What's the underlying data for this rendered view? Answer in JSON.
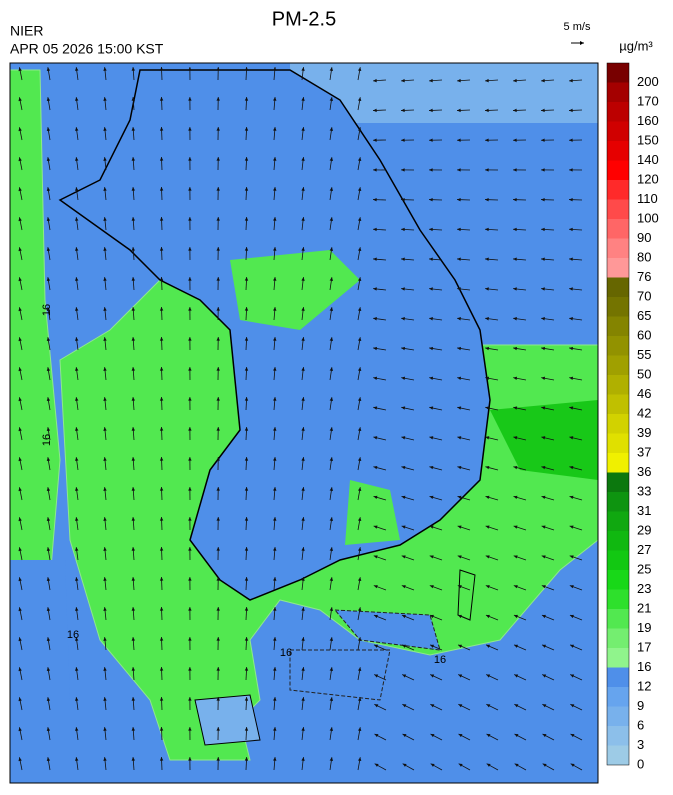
{
  "header": {
    "title": "PM-2.5",
    "agency": "NIER",
    "datetime": "APR 05 2026 15:00 KST"
  },
  "wind_scale": "5 m/s",
  "unit": "µg/m³",
  "contour_labels": [
    16,
    16,
    16,
    16,
    16
  ],
  "legend": {
    "ticks": [
      0,
      3,
      6,
      9,
      12,
      16,
      17,
      19,
      21,
      23,
      25,
      27,
      29,
      31,
      33,
      36,
      37,
      39,
      42,
      46,
      50,
      55,
      60,
      65,
      70,
      76,
      80,
      90,
      100,
      110,
      120,
      140,
      150,
      160,
      170,
      200
    ],
    "colors": [
      "#9dcbe6",
      "#8cbfea",
      "#78b1ec",
      "#66a4ee",
      "#4f8fe9",
      "#90f48c",
      "#74ee70",
      "#52e850",
      "#2ee02c",
      "#18d818",
      "#12c812",
      "#10b810",
      "#10a810",
      "#0e9410",
      "#0c780e",
      "#f0f000",
      "#e0e000",
      "#d2d200",
      "#c0c000",
      "#b0b000",
      "#a0a000",
      "#929200",
      "#848400",
      "#747400",
      "#666600",
      "#ff9898",
      "#ff8282",
      "#ff6666",
      "#ff4a4a",
      "#ff2a2a",
      "#ff0000",
      "#e60000",
      "#d00000",
      "#bc0000",
      "#a40000",
      "#780000"
    ]
  }
}
